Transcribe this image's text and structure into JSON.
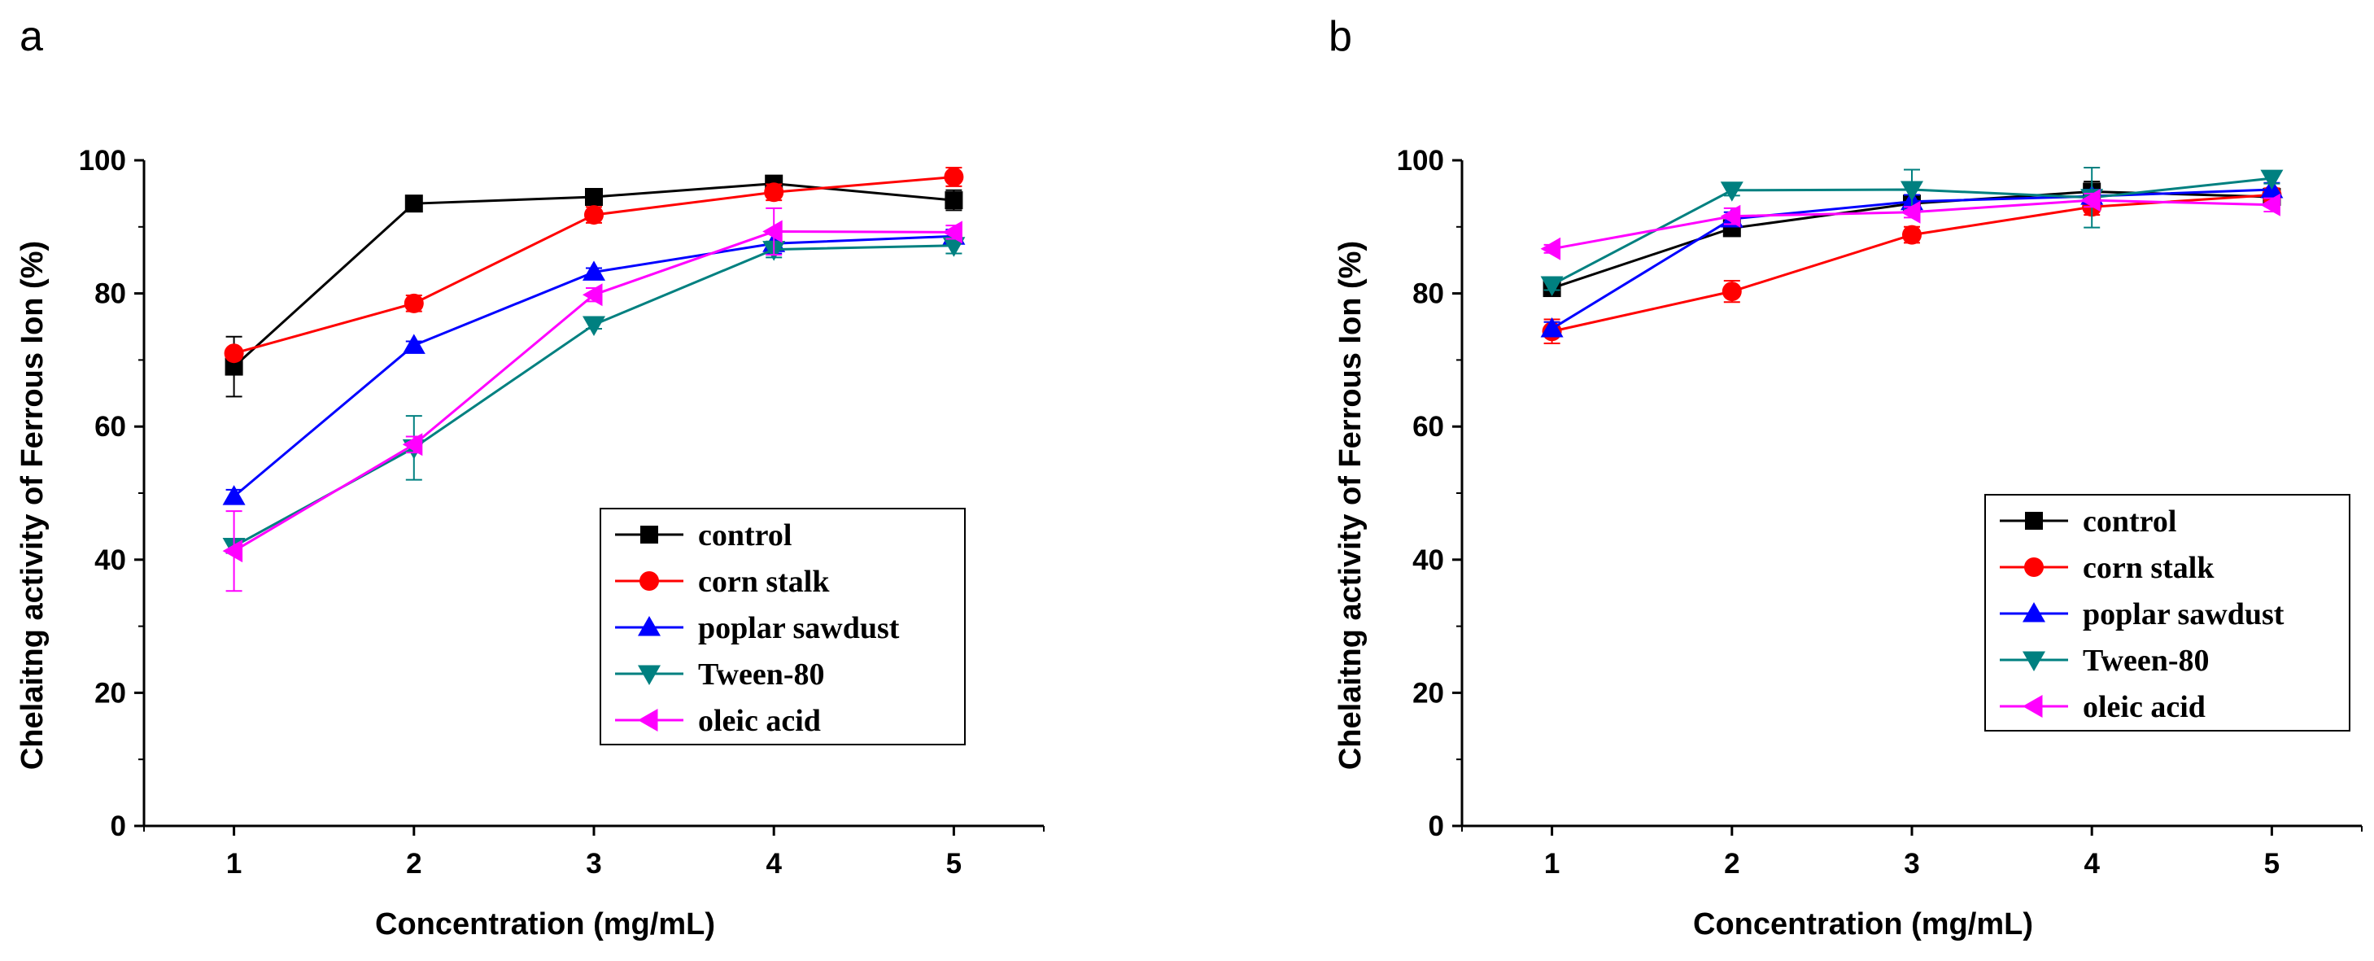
{
  "chart_data": [
    {
      "type": "line",
      "panel": "a",
      "xlabel": "Concentration (mg/mL)",
      "ylabel": "Chelaitng activity of Ferrous Ion (%)",
      "x": [
        1,
        2,
        3,
        4,
        5
      ],
      "xticks": [
        "1",
        "2",
        "3",
        "4",
        "5"
      ],
      "yticks": [
        "0",
        "20",
        "40",
        "60",
        "80",
        "100"
      ],
      "xlim": [
        0.5,
        5.5
      ],
      "ylim": [
        0,
        100
      ],
      "legend_position": "lower-right",
      "series": [
        {
          "name": "control",
          "color": "#000000",
          "marker": "square",
          "values": [
            69,
            93.5,
            94.5,
            96.5,
            94
          ],
          "errors": [
            4.5,
            0.6,
            0.6,
            0.6,
            1.5
          ]
        },
        {
          "name": "corn stalk",
          "color": "#ff0000",
          "marker": "circle",
          "values": [
            71,
            78.5,
            91.8,
            95.2,
            97.5
          ],
          "errors": [
            0.6,
            1.2,
            1.2,
            1.2,
            1.4
          ]
        },
        {
          "name": "poplar sawdust",
          "color": "#0000ff",
          "marker": "triangle-up",
          "values": [
            49.5,
            72.2,
            83.2,
            87.5,
            88.6
          ],
          "errors": [
            1,
            0.6,
            0.6,
            1.5,
            1
          ]
        },
        {
          "name": "Tween-80",
          "color": "#008080",
          "marker": "triangle-down",
          "values": [
            42,
            56.8,
            75.3,
            86.6,
            87.2
          ],
          "errors": [
            1,
            4.8,
            0.6,
            1.2,
            1.2
          ]
        },
        {
          "name": "oleic acid",
          "color": "#ff00ff",
          "marker": "triangle-left",
          "values": [
            41.3,
            57.3,
            79.8,
            89.3,
            89.2
          ],
          "errors": [
            6,
            1.2,
            1,
            3.5,
            1
          ]
        }
      ]
    },
    {
      "type": "line",
      "panel": "b",
      "xlabel": "Concentration (mg/mL)",
      "ylabel": "Chelaitng activity of Ferrous Ion (%)",
      "x": [
        1,
        2,
        3,
        4,
        5
      ],
      "xticks": [
        "1",
        "2",
        "3",
        "4",
        "5"
      ],
      "yticks": [
        "0",
        "20",
        "40",
        "60",
        "80",
        "100"
      ],
      "xlim": [
        0.5,
        5.5
      ],
      "ylim": [
        0,
        100
      ],
      "legend_position": "lower-right",
      "series": [
        {
          "name": "control",
          "color": "#000000",
          "marker": "square",
          "values": [
            80.8,
            89.8,
            93.5,
            95.3,
            94.5
          ],
          "errors": [
            0.8,
            0.8,
            1,
            1.5,
            1
          ]
        },
        {
          "name": "corn stalk",
          "color": "#ff0000",
          "marker": "circle",
          "values": [
            74.3,
            80.3,
            88.8,
            93,
            94.8
          ],
          "errors": [
            1.8,
            1.6,
            1.2,
            1.2,
            1
          ]
        },
        {
          "name": "poplar sawdust",
          "color": "#0000ff",
          "marker": "triangle-up",
          "values": [
            74.7,
            91.2,
            93.8,
            94.6,
            95.6
          ],
          "errors": [
            1,
            1,
            1,
            1,
            1
          ]
        },
        {
          "name": "Tween-80",
          "color": "#008080",
          "marker": "triangle-down",
          "values": [
            81.3,
            95.5,
            95.6,
            94.4,
            97.3
          ],
          "errors": [
            0.8,
            0.8,
            3,
            4.5,
            0.8
          ]
        },
        {
          "name": "oleic acid",
          "color": "#ff00ff",
          "marker": "triangle-left",
          "values": [
            86.7,
            91.6,
            92.2,
            94,
            93.3
          ],
          "errors": [
            0.6,
            1.2,
            0.8,
            1,
            1
          ]
        }
      ]
    }
  ]
}
